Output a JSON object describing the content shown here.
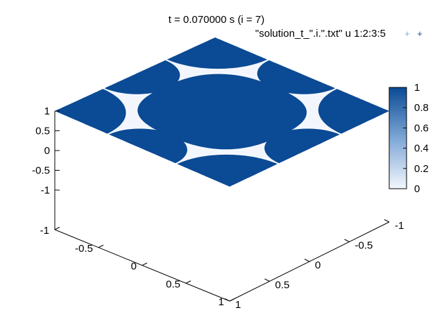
{
  "title": "t = 0.070000 s (i = 7)",
  "legend": {
    "label": "\"solution_t_\".i.\".txt\" u 1:2:3:5",
    "marker": "+"
  },
  "chart_data": {
    "type": "heatmap",
    "subtype": "3d-surface-points",
    "view": "isometric, z axis vertical",
    "x_range": [
      -1,
      1
    ],
    "y_range": [
      -1,
      1
    ],
    "z_range": [
      -1,
      1
    ],
    "x_ticks": [
      "-1",
      "-0.5",
      "0",
      "0.5",
      "1"
    ],
    "y_ticks": [
      "-1",
      "-0.5",
      "0",
      "0.5",
      "1"
    ],
    "z_ticks": [
      "1",
      "0.5",
      "0",
      "-0.5",
      "-1"
    ],
    "colorbar": {
      "range": [
        0,
        1
      ],
      "ticks": [
        "1",
        "0.8",
        "0.6",
        "0.4",
        "0.2",
        "0"
      ],
      "colors": [
        "#f3f7fd",
        "#0b4a94"
      ]
    },
    "regions": [
      {
        "name": "central lens",
        "value": 1
      },
      {
        "name": "four corner quarter-disks",
        "value": 1
      },
      {
        "name": "four edge half-disks",
        "value": 1
      },
      {
        "name": "background",
        "value": 0
      }
    ],
    "grid": false
  }
}
